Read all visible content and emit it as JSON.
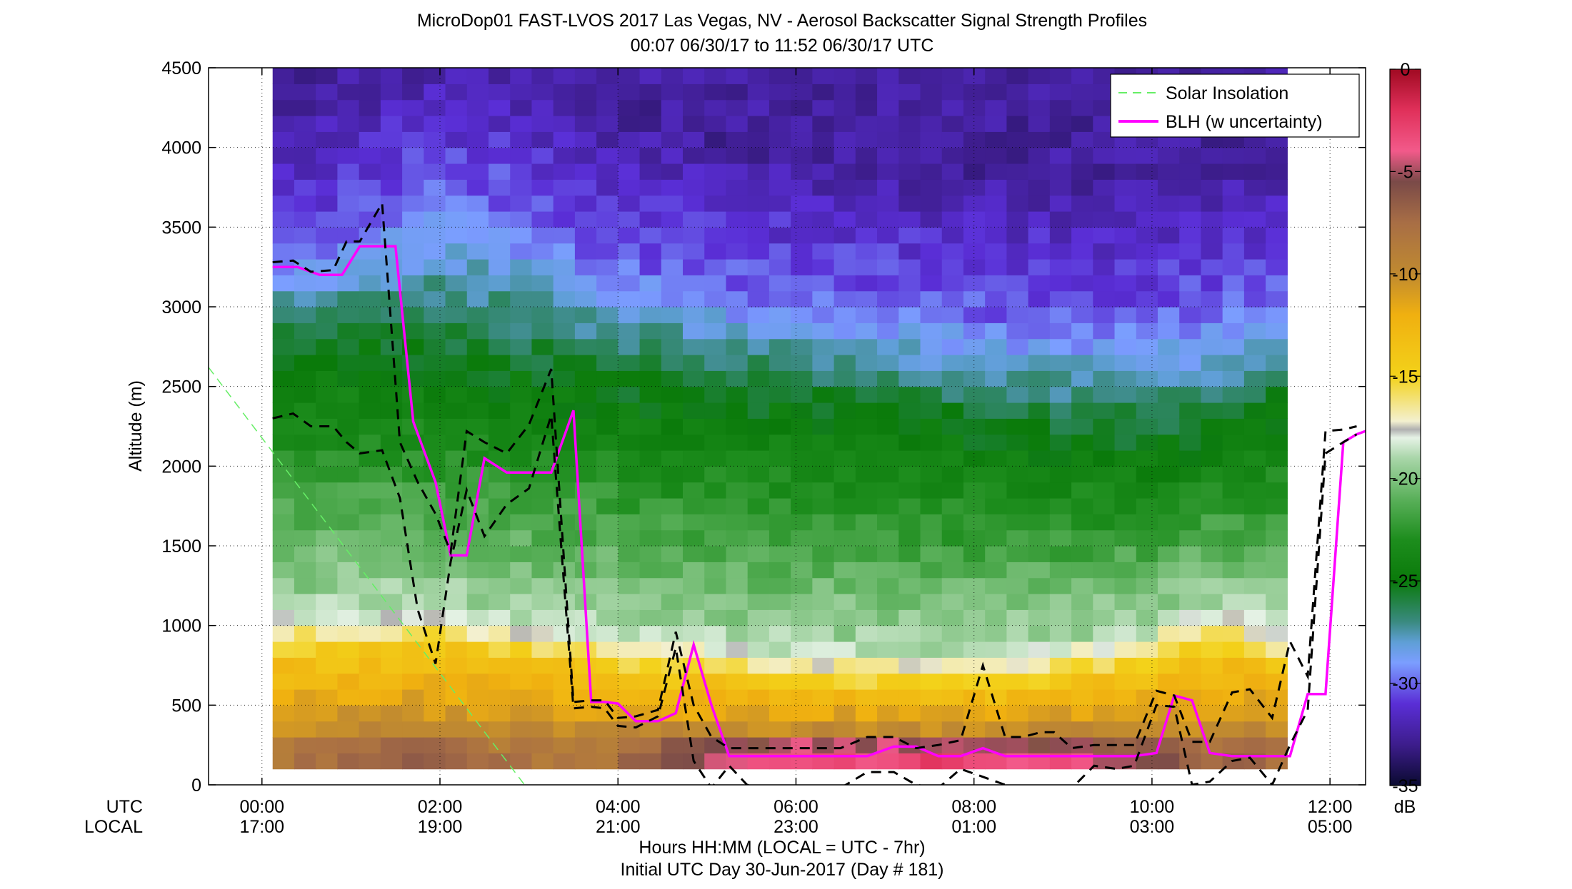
{
  "chart_data": {
    "type": "heatmap",
    "title": "MicroDop01 FAST-LVOS 2017 Las Vegas, NV - Aerosol Backscatter Signal Strength Profiles",
    "subtitle": "00:07 06/30/17 to 11:52 06/30/17  UTC",
    "ylabel": "Altitude (m)",
    "xlabel": "Hours HH:MM  (LOCAL = UTC - 7hr)",
    "xlabel2": "Initial UTC Day 30-Jun-2017 (Day # 181)",
    "x_row_labels": [
      "UTC",
      "LOCAL"
    ],
    "x_range_hours": [
      -0.6,
      12.4
    ],
    "ylim": [
      0,
      4500
    ],
    "y_ticks": [
      0,
      500,
      1000,
      1500,
      2000,
      2500,
      3000,
      3500,
      4000,
      4500
    ],
    "x_ticks": [
      {
        "hour": 0,
        "utc": "00:00",
        "local": "17:00"
      },
      {
        "hour": 2,
        "utc": "02:00",
        "local": "19:00"
      },
      {
        "hour": 4,
        "utc": "04:00",
        "local": "21:00"
      },
      {
        "hour": 6,
        "utc": "06:00",
        "local": "23:00"
      },
      {
        "hour": 8,
        "utc": "08:00",
        "local": "01:00"
      },
      {
        "hour": 10,
        "utc": "10:00",
        "local": "03:00"
      },
      {
        "hour": 12,
        "utc": "12:00",
        "local": "05:00"
      }
    ],
    "grid": true,
    "heatmap_extent": {
      "x_start_hours": 0.12,
      "x_end_hours": 11.52,
      "columns": 47,
      "row_height_m": 100,
      "y_start_m": 100
    },
    "colorbar": {
      "unit": "dB",
      "range": [
        -35,
        0
      ],
      "ticks": [
        0,
        -5,
        -10,
        -15,
        -20,
        -25,
        -30,
        -35
      ],
      "stops": [
        {
          "v": -35,
          "c": "#0a0a30"
        },
        {
          "v": -33,
          "c": "#3d1d8c"
        },
        {
          "v": -31,
          "c": "#5a2ed6"
        },
        {
          "v": -29,
          "c": "#7b9eff"
        },
        {
          "v": -28,
          "c": "#5f9fd6"
        },
        {
          "v": -27,
          "c": "#3a8a80"
        },
        {
          "v": -25,
          "c": "#0a7a0a"
        },
        {
          "v": -23,
          "c": "#1d8d1d"
        },
        {
          "v": -21,
          "c": "#5ab05a"
        },
        {
          "v": -19,
          "c": "#a9d6a9"
        },
        {
          "v": -18,
          "c": "#e6f2e6"
        },
        {
          "v": -17.6,
          "c": "#b0b0b0"
        },
        {
          "v": -17.2,
          "c": "#f3f0cf"
        },
        {
          "v": -15,
          "c": "#f3d21a"
        },
        {
          "v": -12,
          "c": "#f0b010"
        },
        {
          "v": -10,
          "c": "#c08a30"
        },
        {
          "v": -7.5,
          "c": "#a86e45"
        },
        {
          "v": -5.5,
          "c": "#7a4a48"
        },
        {
          "v": -4,
          "c": "#f25a8a"
        },
        {
          "v": -2,
          "c": "#e0305a"
        },
        {
          "v": 0,
          "c": "#a00a22"
        }
      ]
    },
    "series": [
      {
        "name": "BLH (w uncertainty)",
        "color": "#ff00ff",
        "x": [
          0.12,
          0.4,
          0.65,
          0.9,
          1.1,
          1.3,
          1.5,
          1.7,
          1.95,
          2.12,
          2.3,
          2.5,
          2.75,
          3.0,
          3.25,
          3.5,
          3.7,
          3.85,
          4.0,
          4.2,
          4.45,
          4.65,
          4.85,
          5.05,
          5.25,
          5.45,
          5.65,
          5.9,
          6.2,
          6.5,
          6.8,
          7.1,
          7.35,
          7.6,
          7.85,
          8.1,
          8.35,
          8.6,
          8.9,
          9.2,
          9.5,
          9.8,
          10.05,
          10.25,
          10.45,
          10.65,
          10.9,
          11.1,
          11.35,
          11.55,
          11.75,
          11.95,
          12.15,
          12.3,
          12.4
        ],
        "y": [
          3250,
          3250,
          3200,
          3200,
          3380,
          3380,
          3380,
          2280,
          1900,
          1440,
          1440,
          2050,
          1960,
          1960,
          1960,
          2350,
          520,
          520,
          510,
          400,
          400,
          450,
          880,
          500,
          180,
          180,
          180,
          180,
          180,
          180,
          180,
          240,
          240,
          180,
          180,
          230,
          180,
          180,
          180,
          180,
          180,
          180,
          200,
          560,
          530,
          200,
          180,
          180,
          180,
          180,
          570,
          570,
          2150,
          2200,
          2220
        ]
      },
      {
        "name": "",
        "color": "#000000",
        "x": [
          0.12,
          0.35,
          0.55,
          0.8,
          0.95,
          1.1,
          1.35,
          1.55,
          1.75,
          1.95,
          2.12,
          2.3,
          2.5,
          2.75,
          3.0,
          3.25,
          3.5,
          3.7,
          3.85,
          4.0,
          4.2,
          4.45,
          4.65,
          4.85,
          5.05,
          5.25,
          5.45,
          5.65,
          5.9,
          6.2,
          6.5,
          6.8,
          7.1,
          7.35,
          7.6,
          7.85,
          8.1,
          8.35,
          8.55,
          8.75,
          8.9,
          9.1,
          9.35,
          9.6,
          9.8,
          10.05,
          10.25,
          10.45,
          10.65,
          10.9,
          11.1,
          11.35,
          11.55,
          11.75,
          11.95,
          12.15,
          12.3
        ],
        "y": [
          3280,
          3290,
          3220,
          3230,
          3410,
          3410,
          3650,
          2150,
          1900,
          1700,
          1460,
          2220,
          2150,
          2080,
          2260,
          2610,
          520,
          530,
          530,
          420,
          430,
          470,
          960,
          500,
          300,
          230,
          230,
          230,
          230,
          230,
          230,
          300,
          300,
          230,
          250,
          280,
          750,
          300,
          300,
          330,
          330,
          230,
          250,
          250,
          250,
          590,
          560,
          270,
          270,
          580,
          600,
          420,
          900,
          680,
          2220,
          2230,
          2250
        ]
      },
      {
        "name": "",
        "color": "#000000",
        "x": [
          0.12,
          0.35,
          0.55,
          0.8,
          0.95,
          1.1,
          1.35,
          1.55,
          1.75,
          1.95,
          2.12,
          2.3,
          2.5,
          2.75,
          3.0,
          3.25,
          3.5,
          3.7,
          3.85,
          4.0,
          4.2,
          4.45,
          4.65,
          4.85,
          5.05,
          5.25,
          5.45,
          5.65,
          5.9,
          6.2,
          6.5,
          6.8,
          7.1,
          7.35,
          7.6,
          7.85,
          8.1,
          8.35,
          8.55,
          8.75,
          8.9,
          9.1,
          9.35,
          9.6,
          9.8,
          10.05,
          10.25,
          10.45,
          10.65,
          10.9,
          11.1,
          11.35,
          11.55,
          11.75,
          11.95,
          12.15,
          12.3
        ],
        "y": [
          2300,
          2330,
          2250,
          2250,
          2150,
          2080,
          2100,
          1800,
          1100,
          760,
          1400,
          1850,
          1560,
          1760,
          1860,
          2320,
          480,
          490,
          480,
          370,
          360,
          430,
          860,
          150,
          -20,
          120,
          0,
          -20,
          -20,
          -20,
          -20,
          80,
          80,
          0,
          -20,
          100,
          50,
          0,
          -20,
          -20,
          -20,
          -20,
          120,
          100,
          120,
          500,
          490,
          0,
          20,
          150,
          170,
          0,
          250,
          470,
          2080,
          2150,
          2200
        ]
      },
      {
        "name": "Solar Insolation",
        "color": "#66ee66",
        "x": [
          -0.6,
          2.95
        ],
        "y": [
          2620,
          0
        ]
      }
    ],
    "legend": {
      "placement": "top-right",
      "entries": [
        "Solar Insolation",
        "BLH (w uncertainty)"
      ]
    }
  }
}
